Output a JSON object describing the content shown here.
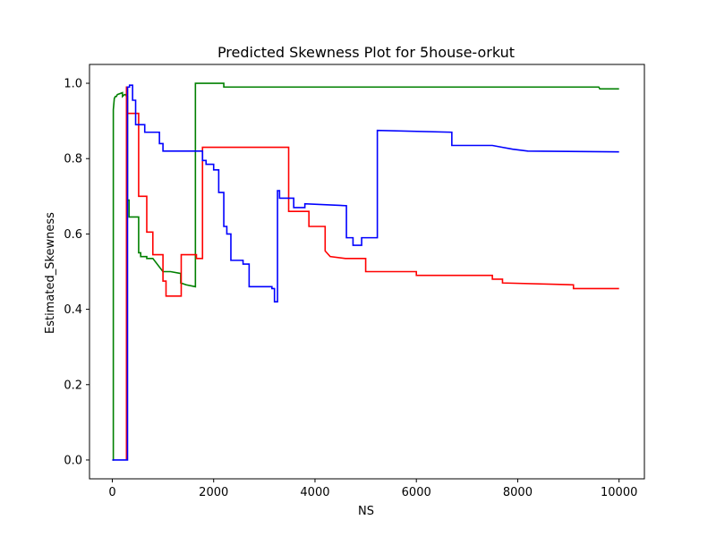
{
  "chart_data": {
    "type": "line",
    "title": "Predicted Skewness Plot for 5house-orkut",
    "xlabel": "NS",
    "ylabel": "Estimated_Skewness",
    "xlim": [
      -450,
      10500
    ],
    "ylim": [
      -0.05,
      1.05
    ],
    "xticks": [
      0,
      2000,
      4000,
      6000,
      8000,
      10000
    ],
    "yticks": [
      0.0,
      0.2,
      0.4,
      0.6,
      0.8,
      1.0
    ],
    "xtick_labels": [
      "0",
      "2000",
      "4000",
      "6000",
      "8000",
      "10000"
    ],
    "ytick_labels": [
      "0.0",
      "0.2",
      "0.4",
      "0.6",
      "0.8",
      "1.0"
    ],
    "grid": false,
    "series": [
      {
        "color": "#008000",
        "x": [
          0,
          20,
          20,
          40,
          60,
          80,
          100,
          200,
          200,
          240,
          260,
          280,
          300,
          300,
          330,
          330,
          520,
          520,
          560,
          560,
          600,
          680,
          680,
          800,
          1000,
          1150,
          1350,
          1350,
          1460,
          1640,
          1640,
          2200,
          2200,
          6700,
          9600,
          9620,
          10000
        ],
        "y": [
          0.0,
          0.0,
          0.93,
          0.96,
          0.965,
          0.965,
          0.97,
          0.975,
          0.965,
          0.97,
          0.97,
          0.965,
          0.965,
          0.69,
          0.69,
          0.645,
          0.645,
          0.55,
          0.55,
          0.54,
          0.54,
          0.54,
          0.535,
          0.535,
          0.5,
          0.5,
          0.495,
          0.47,
          0.465,
          0.46,
          1.0,
          1.0,
          0.99,
          0.99,
          0.99,
          0.985,
          0.985
        ]
      },
      {
        "color": "#ff0000",
        "x": [
          280,
          280,
          300,
          300,
          360,
          360,
          520,
          520,
          680,
          680,
          800,
          800,
          1000,
          1000,
          1060,
          1060,
          1360,
          1360,
          1660,
          1660,
          1780,
          1780,
          3480,
          3480,
          3880,
          3880,
          4200,
          4200,
          4300,
          4600,
          4800,
          4800,
          5000,
          5000,
          6000,
          6000,
          7500,
          7500,
          7700,
          7700,
          9100,
          9100,
          10000
        ],
        "y": [
          0.0,
          0.99,
          0.99,
          0.92,
          0.92,
          0.92,
          0.92,
          0.7,
          0.7,
          0.605,
          0.605,
          0.545,
          0.545,
          0.475,
          0.475,
          0.435,
          0.435,
          0.545,
          0.545,
          0.535,
          0.535,
          0.83,
          0.83,
          0.66,
          0.66,
          0.62,
          0.62,
          0.555,
          0.54,
          0.535,
          0.535,
          0.535,
          0.535,
          0.5,
          0.5,
          0.49,
          0.49,
          0.48,
          0.48,
          0.47,
          0.465,
          0.455,
          0.455
        ]
      },
      {
        "color": "#0000ff",
        "x": [
          0,
          300,
          300,
          340,
          340,
          400,
          400,
          460,
          460,
          640,
          640,
          930,
          930,
          1000,
          1000,
          1060,
          1060,
          1780,
          1780,
          1850,
          1850,
          2000,
          2000,
          2100,
          2100,
          2200,
          2200,
          2260,
          2260,
          2340,
          2340,
          2580,
          2580,
          2700,
          2700,
          3150,
          3150,
          3200,
          3200,
          3260,
          3260,
          3300,
          3300,
          3580,
          3580,
          3800,
          3800,
          4620,
          4620,
          4750,
          4750,
          4920,
          4920,
          5230,
          5230,
          6700,
          6700,
          7500,
          7700,
          7900,
          8200,
          10000
        ],
        "y": [
          0.0,
          0.0,
          0.99,
          0.99,
          0.995,
          0.995,
          0.955,
          0.955,
          0.89,
          0.89,
          0.87,
          0.87,
          0.84,
          0.84,
          0.82,
          0.82,
          0.82,
          0.82,
          0.795,
          0.795,
          0.785,
          0.785,
          0.77,
          0.77,
          0.71,
          0.71,
          0.62,
          0.62,
          0.6,
          0.6,
          0.53,
          0.53,
          0.52,
          0.52,
          0.46,
          0.46,
          0.455,
          0.455,
          0.42,
          0.42,
          0.715,
          0.715,
          0.695,
          0.695,
          0.67,
          0.67,
          0.68,
          0.675,
          0.59,
          0.59,
          0.57,
          0.57,
          0.59,
          0.59,
          0.875,
          0.87,
          0.835,
          0.835,
          0.83,
          0.825,
          0.82,
          0.818
        ]
      }
    ]
  }
}
